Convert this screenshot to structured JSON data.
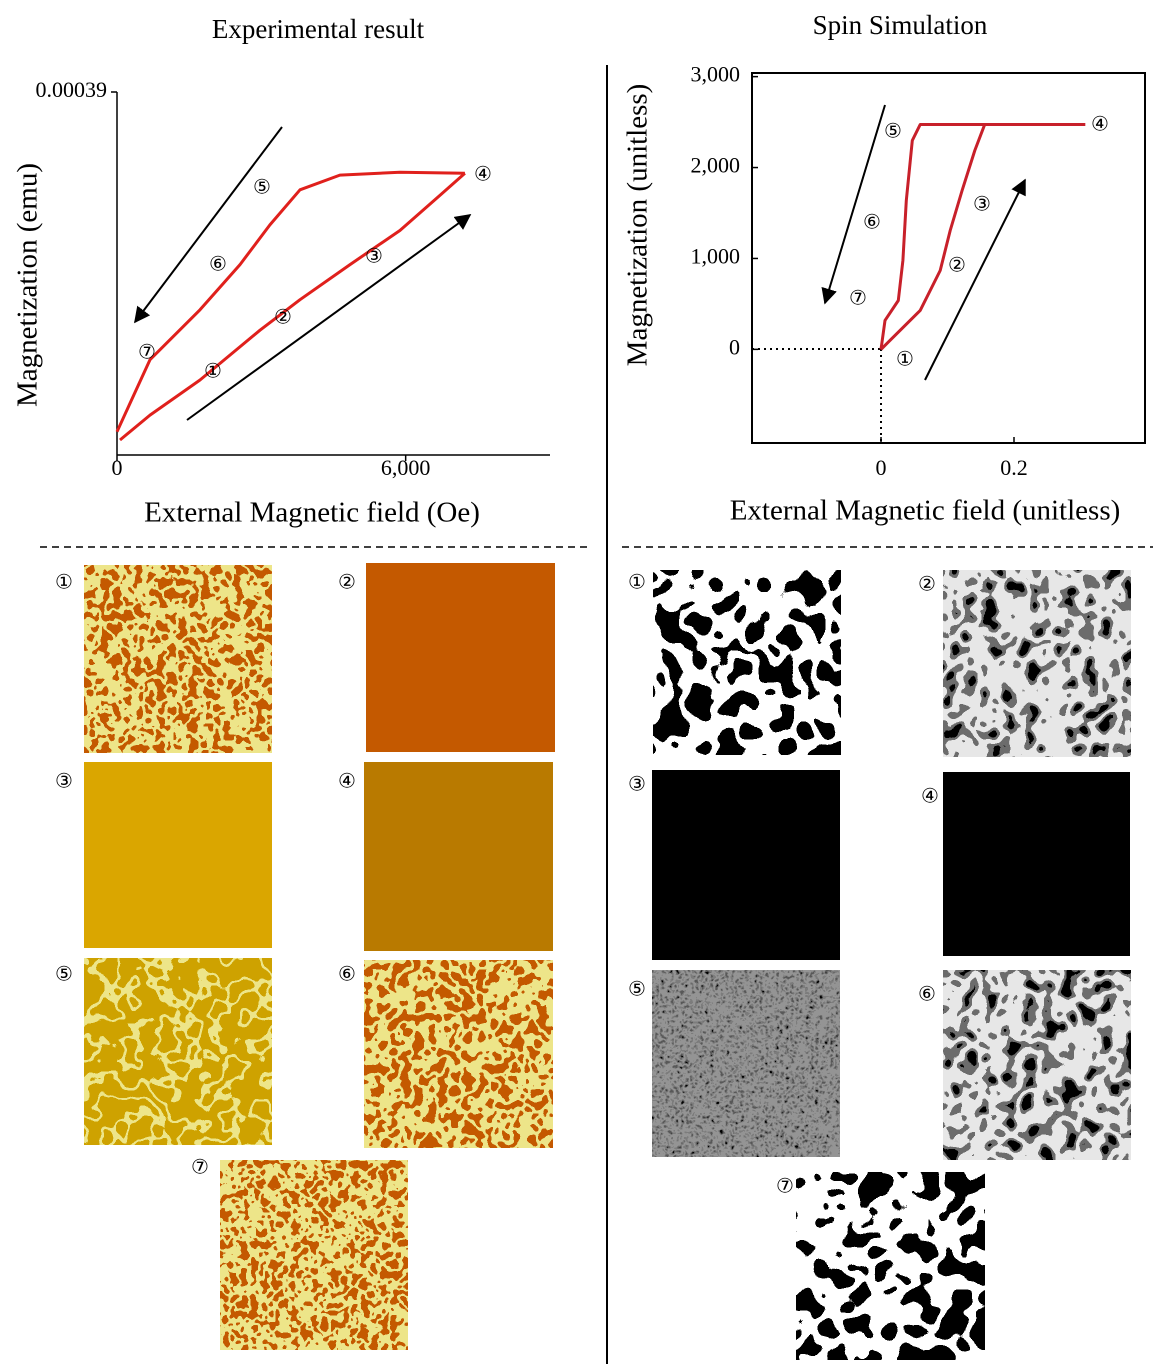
{
  "chart_data": [
    {
      "type": "line",
      "title": "Experimental result",
      "x_label": "External Magnetic field (Oe)",
      "y_label": "Magnetization (emu)",
      "xlim": [
        0,
        9000
      ],
      "xticks": [
        0,
        {
          "value": 6000,
          "label": "6,000"
        }
      ],
      "ylim": [
        0,
        0.00039
      ],
      "yticks": [
        0.00039
      ],
      "series": [
        {
          "color": "#e0201c",
          "x": [
            62,
            686,
            1725,
            2972,
            3803,
            4842,
            5881,
            6712,
            7232
          ],
          "values": [
            1.3e-05,
            4e-05,
            7.8e-05,
            0.000132,
            0.000165,
            0.000203,
            0.00024,
            0.000278,
            0.000302
          ]
        },
        {
          "color": "#e0201c",
          "x": [
            7232,
            5881,
            4634,
            3803,
            3179,
            2556,
            1725,
            686,
            0
          ],
          "values": [
            0.000302,
            0.000303,
            0.0003,
            0.000284,
            0.000246,
            0.000203,
            0.000154,
            0.0001,
            2.2e-05
          ]
        }
      ],
      "annotations": [
        "①",
        "②",
        "③",
        "④",
        "⑤",
        "⑥",
        "⑦"
      ],
      "panel_labels": [
        "①",
        "②",
        "③",
        "④",
        "⑤",
        "⑥",
        "⑦"
      ]
    },
    {
      "type": "line",
      "title": "Spin Simulation",
      "x_label": "External Magnetic field (unitless)",
      "y_label": "Magnetization (unitless)",
      "xlim": [
        -0.194,
        0.397
      ],
      "xticks": [
        0,
        0.2
      ],
      "ylim": [
        -1030,
        3040
      ],
      "yticks": [
        0,
        {
          "value": 1000,
          "label": "1,000"
        },
        {
          "value": 2000,
          "label": "2,000"
        },
        {
          "value": 3000,
          "label": "3,000"
        }
      ],
      "series": [
        {
          "color": "#c8202a",
          "x": [
            0,
            0.021,
            0.059,
            0.089,
            0.104,
            0.122,
            0.141,
            0.156,
            0.307
          ],
          "values": [
            0,
            154,
            429,
            868,
            1308,
            1747,
            2187,
            2473,
            2473
          ]
        },
        {
          "color": "#c8202a",
          "x": [
            0.307,
            0.059,
            0.047,
            0.038,
            0.033,
            0.026,
            0.006,
            0
          ],
          "values": [
            2473,
            2473,
            2297,
            1637,
            978,
            538,
            319,
            0
          ]
        }
      ],
      "annotations": [
        "①",
        "②",
        "③",
        "④",
        "⑤",
        "⑥",
        "⑦"
      ],
      "panel_labels": [
        "①",
        "②",
        "③",
        "④",
        "⑤",
        "⑥",
        "⑦"
      ]
    }
  ]
}
